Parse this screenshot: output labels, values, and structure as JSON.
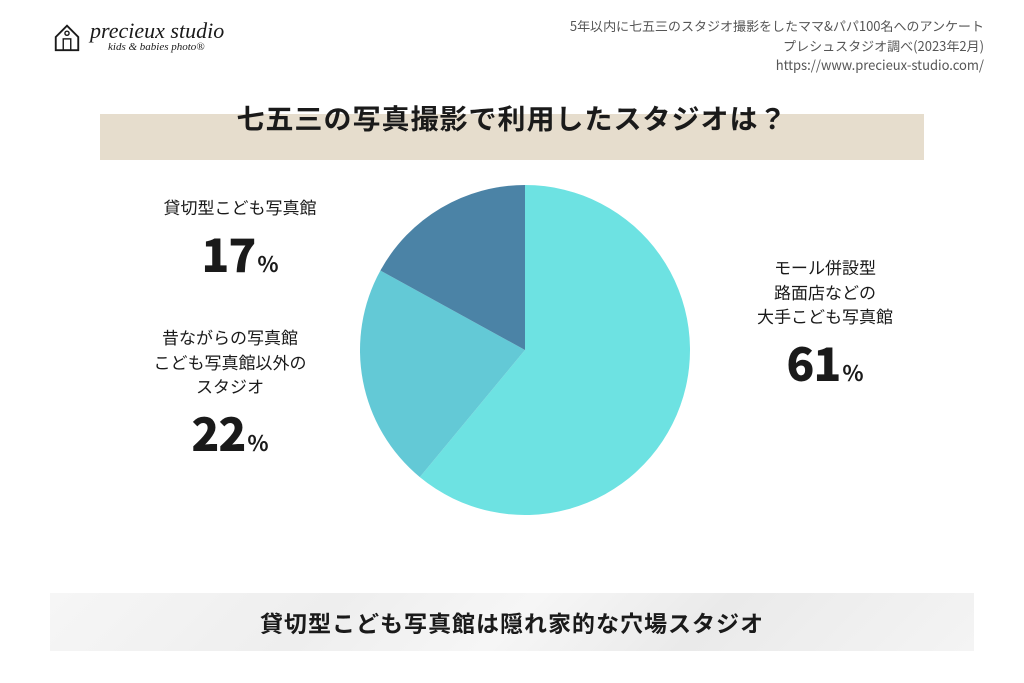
{
  "logo": {
    "main": "precieux studio",
    "sub": "kids & babies photo®"
  },
  "meta": {
    "line1": "5年以内に七五三のスタジオ撮影をしたママ&パパ100名へのアンケート",
    "line2": "プレシュスタジオ調べ(2023年2月)",
    "line3": "https://www.precieux-studio.com/"
  },
  "title": "七五三の写真撮影で利用したスタジオは？",
  "chart": {
    "type": "pie",
    "background_color": "#ffffff",
    "title_band_color": "#e6ddcd",
    "slices": [
      {
        "label_lines": [
          "モール併設型",
          "路面店などの",
          "大手こども写真館"
        ],
        "value": 61,
        "pct_display": "61",
        "color": "#6de2e2"
      },
      {
        "label_lines": [
          "昔ながらの写真館",
          "こども写真館以外の",
          "スタジオ"
        ],
        "value": 22,
        "pct_display": "22",
        "color": "#63c9d6"
      },
      {
        "label_lines": [
          "貸切型こども写真館"
        ],
        "value": 17,
        "pct_display": "17",
        "color": "#4b83a6"
      }
    ],
    "pct_unit": "%",
    "label_fontsize": 17,
    "pct_fontsize": 46,
    "text_color": "#1a1a1a",
    "radius": 165
  },
  "footer": "貸切型こども写真館は隠れ家的な穴場スタジオ"
}
